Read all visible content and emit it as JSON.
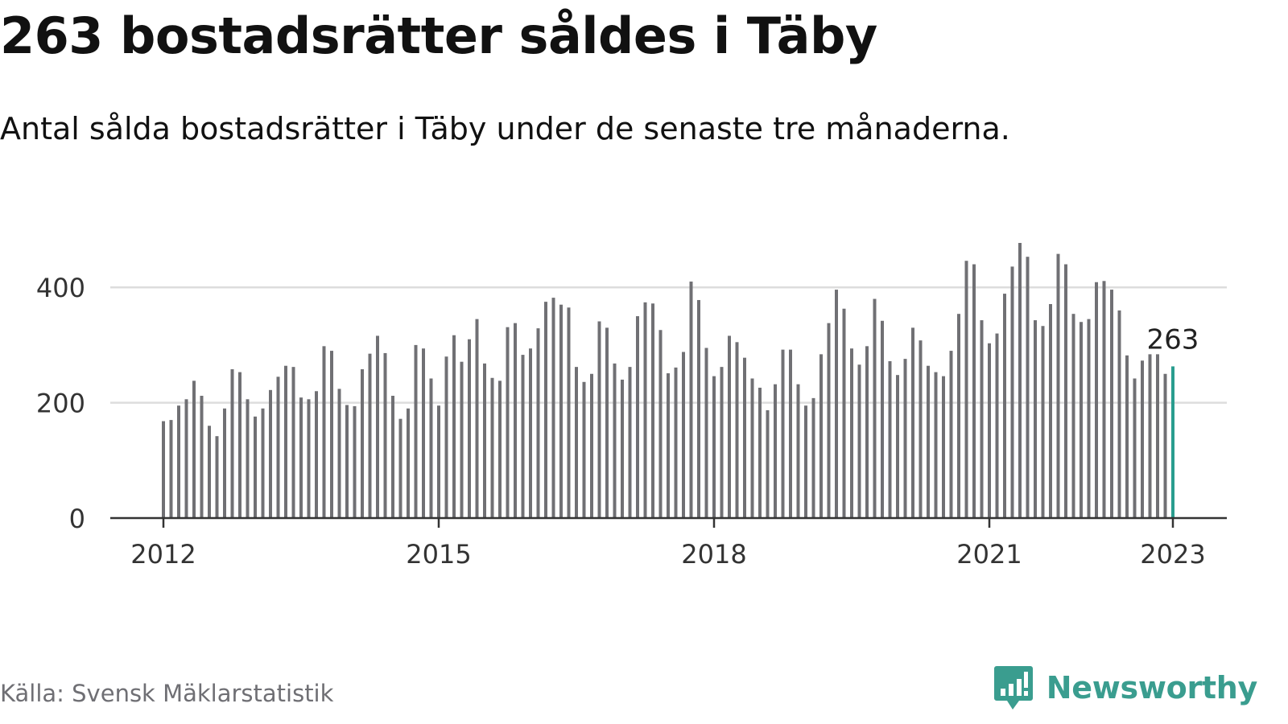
{
  "header": {
    "title": "263 bostadsrätter såldes i Täby",
    "subtitle": "Antal sålda bostadsrätter i Täby under de senaste tre månaderna."
  },
  "footer": {
    "source": "Källa: Svensk Mäklarstatistik",
    "brand": "Newsworthy",
    "brand_icon": "bar-chart-speech-bubble-icon"
  },
  "colors": {
    "bar": "#707074",
    "highlight": "#2a9d8f",
    "grid": "#dddddd",
    "axis": "#333333",
    "text": "#333333",
    "brand": "#3a9d8f"
  },
  "chart_data": {
    "type": "bar",
    "title": "263 bostadsrätter såldes i Täby",
    "subtitle": "Antal sålda bostadsrätter i Täby under de senaste tre månaderna.",
    "xlabel": "",
    "ylabel": "",
    "ylim": [
      0,
      480
    ],
    "yticks": [
      0,
      200,
      400
    ],
    "xticks": [
      "2012",
      "2015",
      "2018",
      "2021",
      "2023"
    ],
    "grid": true,
    "x_start": "2012-01",
    "x_end": "2023-01",
    "x": [
      "2012-01",
      "2012-02",
      "2012-03",
      "2012-04",
      "2012-05",
      "2012-06",
      "2012-07",
      "2012-08",
      "2012-09",
      "2012-10",
      "2012-11",
      "2012-12",
      "2013-01",
      "2013-02",
      "2013-03",
      "2013-04",
      "2013-05",
      "2013-06",
      "2013-07",
      "2013-08",
      "2013-09",
      "2013-10",
      "2013-11",
      "2013-12",
      "2014-01",
      "2014-02",
      "2014-03",
      "2014-04",
      "2014-05",
      "2014-06",
      "2014-07",
      "2014-08",
      "2014-09",
      "2014-10",
      "2014-11",
      "2014-12",
      "2015-01",
      "2015-02",
      "2015-03",
      "2015-04",
      "2015-05",
      "2015-06",
      "2015-07",
      "2015-08",
      "2015-09",
      "2015-10",
      "2015-11",
      "2015-12",
      "2016-01",
      "2016-02",
      "2016-03",
      "2016-04",
      "2016-05",
      "2016-06",
      "2016-07",
      "2016-08",
      "2016-09",
      "2016-10",
      "2016-11",
      "2016-12",
      "2017-01",
      "2017-02",
      "2017-03",
      "2017-04",
      "2017-05",
      "2017-06",
      "2017-07",
      "2017-08",
      "2017-09",
      "2017-10",
      "2017-11",
      "2017-12",
      "2018-01",
      "2018-02",
      "2018-03",
      "2018-04",
      "2018-05",
      "2018-06",
      "2018-07",
      "2018-08",
      "2018-09",
      "2018-10",
      "2018-11",
      "2018-12",
      "2019-01",
      "2019-02",
      "2019-03",
      "2019-04",
      "2019-05",
      "2019-06",
      "2019-07",
      "2019-08",
      "2019-09",
      "2019-10",
      "2019-11",
      "2019-12",
      "2020-01",
      "2020-02",
      "2020-03",
      "2020-04",
      "2020-05",
      "2020-06",
      "2020-07",
      "2020-08",
      "2020-09",
      "2020-10",
      "2020-11",
      "2020-12",
      "2021-01",
      "2021-02",
      "2021-03",
      "2021-04",
      "2021-05",
      "2021-06",
      "2021-07",
      "2021-08",
      "2021-09",
      "2021-10",
      "2021-11",
      "2021-12",
      "2022-01",
      "2022-02",
      "2022-03",
      "2022-04",
      "2022-05",
      "2022-06",
      "2022-07",
      "2022-08",
      "2022-09",
      "2022-10",
      "2022-11",
      "2022-12",
      "2023-01"
    ],
    "values": [
      168,
      170,
      195,
      206,
      238,
      212,
      160,
      142,
      190,
      258,
      253,
      206,
      176,
      190,
      222,
      245,
      264,
      262,
      209,
      206,
      220,
      298,
      290,
      224,
      196,
      194,
      258,
      285,
      316,
      286,
      212,
      172,
      190,
      300,
      294,
      242,
      195,
      280,
      317,
      271,
      310,
      345,
      268,
      243,
      238,
      331,
      338,
      283,
      294,
      329,
      375,
      382,
      370,
      365,
      262,
      236,
      250,
      341,
      330,
      268,
      240,
      262,
      350,
      374,
      372,
      326,
      251,
      261,
      288,
      410,
      378,
      295,
      246,
      262,
      316,
      305,
      278,
      242,
      226,
      187,
      232,
      292,
      292,
      232,
      195,
      208,
      284,
      338,
      396,
      363,
      294,
      266,
      298,
      380,
      342,
      272,
      248,
      276,
      330,
      308,
      264,
      253,
      246,
      290,
      354,
      446,
      440,
      343,
      303,
      320,
      389,
      436,
      477,
      453,
      343,
      333,
      371,
      458,
      440,
      354,
      340,
      345,
      409,
      411,
      396,
      360,
      282,
      242,
      273,
      284,
      284,
      250,
      263
    ],
    "highlight": {
      "x": "2023-01",
      "value": 263,
      "label": "263"
    }
  }
}
